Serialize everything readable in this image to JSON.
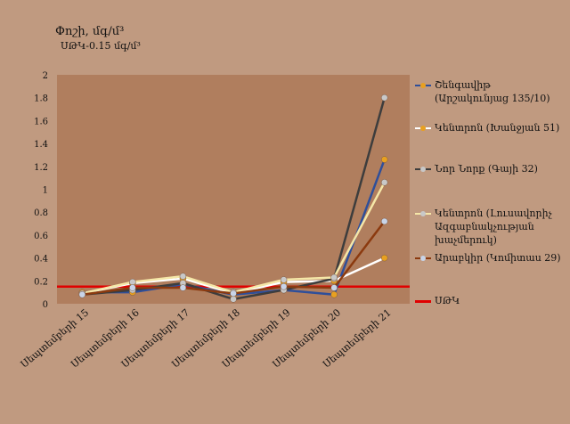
{
  "title": "Փոշի, մգ/մ³",
  "subtitle": "ՍԹԿ-0.15 մգ/մ³",
  "chart_data": {
    "type": "line",
    "categories": [
      "Սեպտեմբերի 15",
      "Սեպտեմբերի 16",
      "Սեպտեմբերի 17",
      "Սեպտեմբերի 18",
      "Սեպտեմբերի 19",
      "Սեպտեմբերի 20",
      "Սեպտեմբերի 21"
    ],
    "y_ticks": [
      "0",
      "0.2",
      "0.4",
      "0.6",
      "0.8",
      "1",
      "1.2",
      "1.4",
      "1.6",
      "1.8",
      "2"
    ],
    "ylim": [
      0,
      2
    ],
    "grid": false,
    "legend_position": "right",
    "plot_color": "#b07e5e",
    "series": [
      {
        "name": "Շենգավիթ (Արշակունյաց 135/10)",
        "color": "#2f4f9a",
        "marker": "#e8a020",
        "values": [
          0.1,
          0.1,
          0.17,
          0.08,
          0.12,
          0.08,
          1.26
        ]
      },
      {
        "name": "Կենտրոն (Խանջյան 51)",
        "color": "#ffffff",
        "marker": "#e8a020",
        "values": [
          0.09,
          0.18,
          0.22,
          0.09,
          0.19,
          0.2,
          0.4
        ]
      },
      {
        "name": "Նոր Նորք (Գայի 32)",
        "color": "#3d3d3d",
        "marker": "#c8c8c8",
        "values": [
          0.08,
          0.12,
          0.18,
          0.04,
          0.12,
          0.22,
          1.8
        ]
      },
      {
        "name": "Կենտրոն (Լուսավորիչ Ազգաբնակչության խաչմերուկ)",
        "color": "#f5e7a8",
        "marker": "#c8c8c8",
        "values": [
          0.09,
          0.19,
          0.24,
          0.1,
          0.21,
          0.23,
          1.06
        ]
      },
      {
        "name": "Արաբկիր (Կոմիտաս 29)",
        "color": "#8b3a0f",
        "marker": "#c8d4e8",
        "values": [
          0.08,
          0.14,
          0.14,
          0.09,
          0.15,
          0.14,
          0.72
        ]
      }
    ],
    "limit": {
      "name": "ՍԹԿ",
      "value": 0.15,
      "color": "#e00000"
    }
  }
}
